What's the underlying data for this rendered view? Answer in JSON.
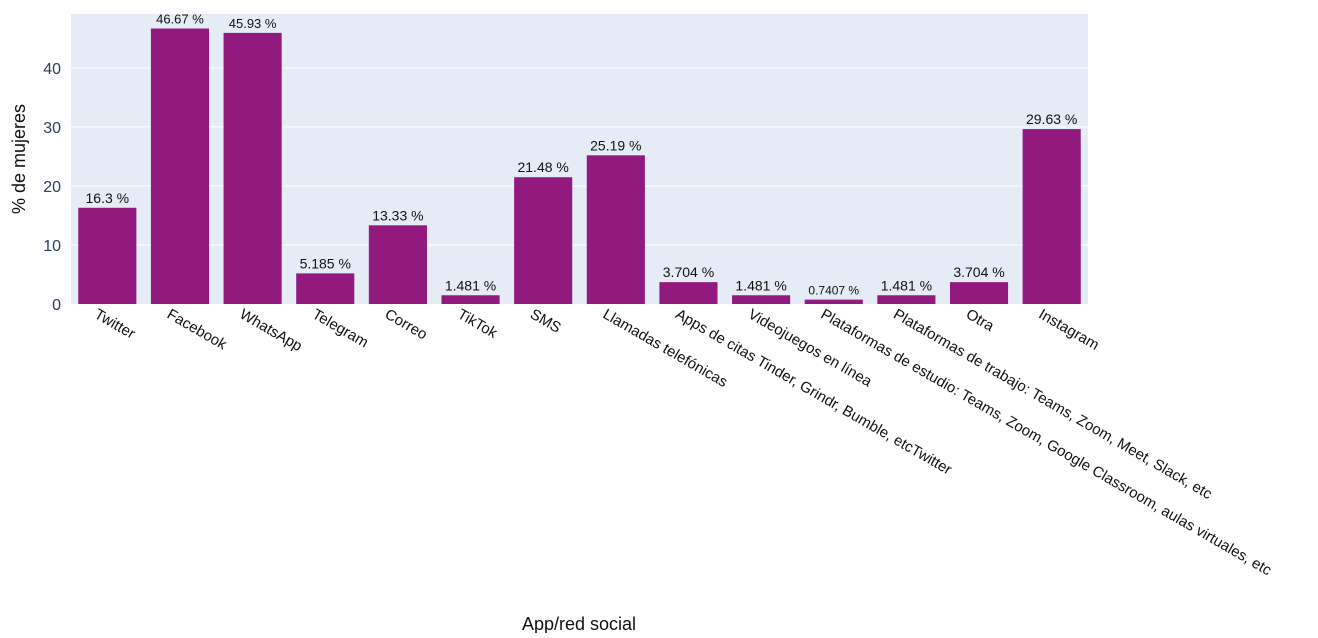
{
  "chart_data": {
    "type": "bar",
    "title": "",
    "xlabel": "App/red social",
    "ylabel": "% de mujeres",
    "ylim": [
      0,
      49.13
    ],
    "yticks": [
      0,
      10,
      20,
      30,
      40
    ],
    "grid": true,
    "colors": {
      "bar": "#921a7e",
      "plot_background": "#e5ecf6",
      "grid": "#ffffff",
      "tick_text": "#2a3f5f",
      "label_text": "#111111"
    },
    "categories": [
      "Twitter",
      "Facebook",
      "WhatsApp",
      "Telegram",
      "Correo",
      "TikTok",
      "SMS",
      "Llamadas telefónicas",
      "Apps de citas Tinder, Grindr, Bumble, etcTwitter",
      "Videojuegos en línea",
      "Plataformas de estudio: Teams, Zoom, Google Classroom, aulas virtuales, etc",
      "Plataformas de trabajo: Teams, Zoom, Meet, Slack, etc",
      "Otra",
      "Instagram"
    ],
    "values": [
      16.3,
      46.67,
      45.93,
      5.185,
      13.33,
      1.481,
      21.48,
      25.19,
      3.704,
      1.481,
      0.7407,
      1.481,
      3.704,
      29.63
    ],
    "data_labels": [
      "16.3 %",
      "46.67 %",
      "45.93 %",
      "5.185 %",
      "13.33 %",
      "1.481 %",
      "21.48 %",
      "25.19 %",
      "3.704 %",
      "1.481 %",
      "0.7407 %",
      "1.481 %",
      "3.704 %",
      "29.63 %"
    ]
  }
}
